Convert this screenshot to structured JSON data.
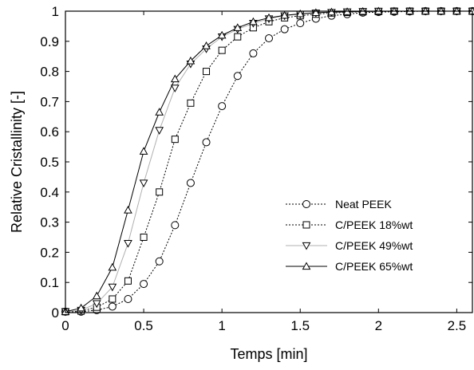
{
  "chart_data": {
    "type": "line",
    "xlabel": "Temps [min]",
    "ylabel": "Relative Cristallinity [-]",
    "xlim": [
      0,
      2.6
    ],
    "ylim": [
      0,
      1
    ],
    "x_ticks": [
      "0",
      "0.5",
      "1",
      "1.5",
      "2",
      "2.5"
    ],
    "y_ticks": [
      "0",
      "0.1",
      "0.2",
      "0.3",
      "0.4",
      "0.5",
      "0.6",
      "0.7",
      "0.8",
      "0.9",
      "1"
    ],
    "grid": false,
    "legend_position": "lower-right",
    "x": [
      0,
      0.1,
      0.2,
      0.3,
      0.4,
      0.5,
      0.6,
      0.7,
      0.8,
      0.9,
      1.0,
      1.1,
      1.2,
      1.3,
      1.4,
      1.5,
      1.6,
      1.7,
      1.8,
      1.9,
      2.0,
      2.1,
      2.2,
      2.3,
      2.4,
      2.5,
      2.6
    ],
    "series": [
      {
        "name": "Neat PEEK",
        "marker": "circle",
        "line_style": "dotted",
        "color": "#000000",
        "values": [
          0.003,
          0.003,
          0.008,
          0.02,
          0.045,
          0.095,
          0.17,
          0.29,
          0.43,
          0.565,
          0.685,
          0.785,
          0.86,
          0.91,
          0.94,
          0.96,
          0.975,
          0.985,
          0.99,
          0.995,
          0.997,
          0.998,
          0.999,
          1.0,
          1.0,
          1.0,
          1.0
        ]
      },
      {
        "name": "C/PEEK 18%wt",
        "marker": "square",
        "line_style": "dotted",
        "color": "#000000",
        "values": [
          0.003,
          0.005,
          0.018,
          0.045,
          0.105,
          0.25,
          0.4,
          0.575,
          0.695,
          0.8,
          0.87,
          0.915,
          0.945,
          0.965,
          0.978,
          0.985,
          0.99,
          0.994,
          0.996,
          0.998,
          0.999,
          1.0,
          1.0,
          1.0,
          1.0,
          1.0,
          1.0
        ]
      },
      {
        "name": "C/PEEK 49%wt",
        "marker": "triangle-down",
        "line_style": "solid",
        "color": "#b0b0b0",
        "values": [
          0.003,
          0.008,
          0.03,
          0.085,
          0.23,
          0.43,
          0.605,
          0.745,
          0.825,
          0.875,
          0.915,
          0.94,
          0.96,
          0.975,
          0.985,
          0.99,
          0.994,
          0.996,
          0.998,
          0.999,
          1.0,
          1.0,
          1.0,
          1.0,
          1.0,
          1.0,
          1.0
        ]
      },
      {
        "name": "C/PEEK 65%wt",
        "marker": "triangle-up",
        "line_style": "solid",
        "color": "#000000",
        "values": [
          0.003,
          0.015,
          0.055,
          0.15,
          0.34,
          0.535,
          0.665,
          0.775,
          0.835,
          0.885,
          0.92,
          0.945,
          0.965,
          0.978,
          0.986,
          0.991,
          0.995,
          0.997,
          0.998,
          0.999,
          1.0,
          1.0,
          1.0,
          1.0,
          1.0,
          1.0,
          1.0
        ]
      }
    ]
  }
}
